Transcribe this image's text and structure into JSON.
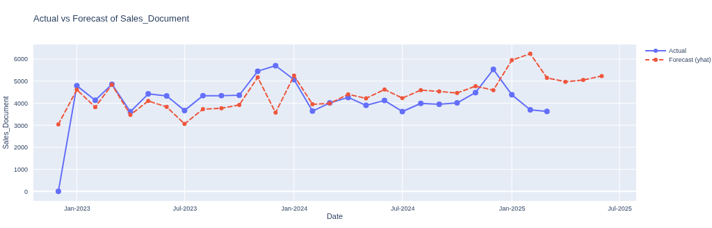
{
  "chart_data": {
    "type": "line",
    "title": "Actual vs Forecast of Sales_Document",
    "xlabel": "Date",
    "ylabel": "Sales_Document",
    "x": [
      "2022-12-01",
      "2023-01-01",
      "2023-02-01",
      "2023-03-01",
      "2023-04-01",
      "2023-05-01",
      "2023-06-01",
      "2023-07-01",
      "2023-08-01",
      "2023-09-01",
      "2023-10-01",
      "2023-11-01",
      "2023-12-01",
      "2024-01-01",
      "2024-02-01",
      "2024-03-01",
      "2024-04-01",
      "2024-05-01",
      "2024-06-01",
      "2024-07-01",
      "2024-08-01",
      "2024-09-01",
      "2024-10-01",
      "2024-11-01",
      "2024-12-01",
      "2025-01-01",
      "2025-02-01",
      "2025-03-01",
      "2025-04-01",
      "2025-05-01",
      "2025-06-01"
    ],
    "series": [
      {
        "name": "Actual",
        "color": "#636efa",
        "line_style": "solid",
        "values": [
          0,
          4790,
          4130,
          4860,
          3610,
          4420,
          4330,
          3670,
          4340,
          4340,
          4360,
          5450,
          5700,
          5070,
          3640,
          4010,
          4260,
          3900,
          4120,
          3620,
          3990,
          3950,
          4010,
          4480,
          5530,
          4380,
          3700,
          3630,
          null,
          null,
          null
        ]
      },
      {
        "name": "Forecast (yhat)",
        "color": "#ef553b",
        "line_style": "dashed",
        "values": [
          3040,
          4610,
          3820,
          4840,
          3470,
          4100,
          3830,
          3060,
          3730,
          3770,
          3920,
          5170,
          3570,
          5250,
          3950,
          3990,
          4400,
          4220,
          4620,
          4230,
          4590,
          4530,
          4460,
          4770,
          4590,
          5950,
          6240,
          5150,
          4970,
          5050,
          5230
        ]
      }
    ],
    "xlim": [
      "2022-10-20",
      "2025-07-29"
    ],
    "xticks": [
      {
        "value": "2023-01-01",
        "label": "Jan-2023"
      },
      {
        "value": "2023-07-01",
        "label": "Jul-2023"
      },
      {
        "value": "2024-01-01",
        "label": "Jan-2024"
      },
      {
        "value": "2024-07-01",
        "label": "Jul-2024"
      },
      {
        "value": "2025-01-01",
        "label": "Jan-2025"
      },
      {
        "value": "2025-07-01",
        "label": "Jul-2025"
      }
    ],
    "ylim": [
      -430,
      6660
    ],
    "yticks": [
      0,
      1000,
      2000,
      3000,
      4000,
      5000,
      6000
    ],
    "grid": true,
    "marker": "circle",
    "legend": "top right"
  }
}
